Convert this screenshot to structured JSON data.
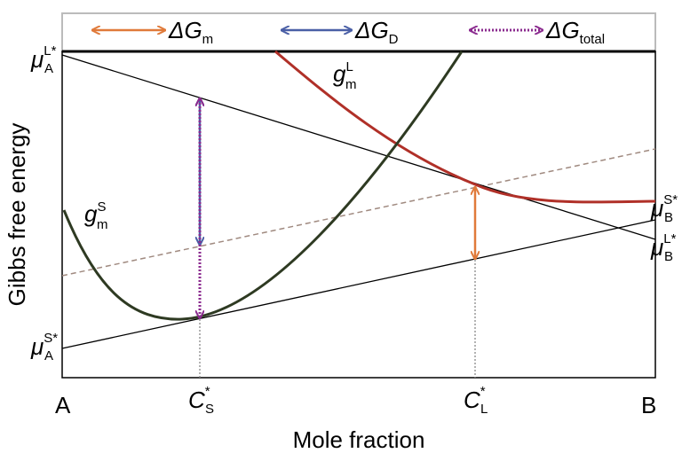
{
  "legend": [
    {
      "symbol": "ΔG",
      "subscript": "m"
    },
    {
      "symbol": "ΔG",
      "subscript": "D"
    },
    {
      "symbol": "ΔG",
      "subscript": "total"
    }
  ],
  "axes": {
    "y_label": "Gibbs free energy",
    "x_label": "Mole fraction",
    "x_start": "A",
    "x_end": "B"
  },
  "curve_labels": [
    {
      "symbol": "g",
      "subscript": "m",
      "superscript": "L"
    },
    {
      "symbol": "g",
      "subscript": "m",
      "superscript": "S"
    }
  ],
  "potential_labels": [
    {
      "symbol": "μ",
      "subscript": "A",
      "superscript": "L*"
    },
    {
      "symbol": "μ",
      "subscript": "A",
      "superscript": "S*"
    },
    {
      "symbol": "μ",
      "subscript": "B",
      "superscript": "S*"
    },
    {
      "symbol": "μ",
      "subscript": "B",
      "superscript": "L*"
    }
  ],
  "composition_labels": [
    {
      "symbol": "C",
      "subscript": "S",
      "superscript": "*"
    },
    {
      "symbol": "C",
      "subscript": "L",
      "superscript": "*"
    }
  ]
}
